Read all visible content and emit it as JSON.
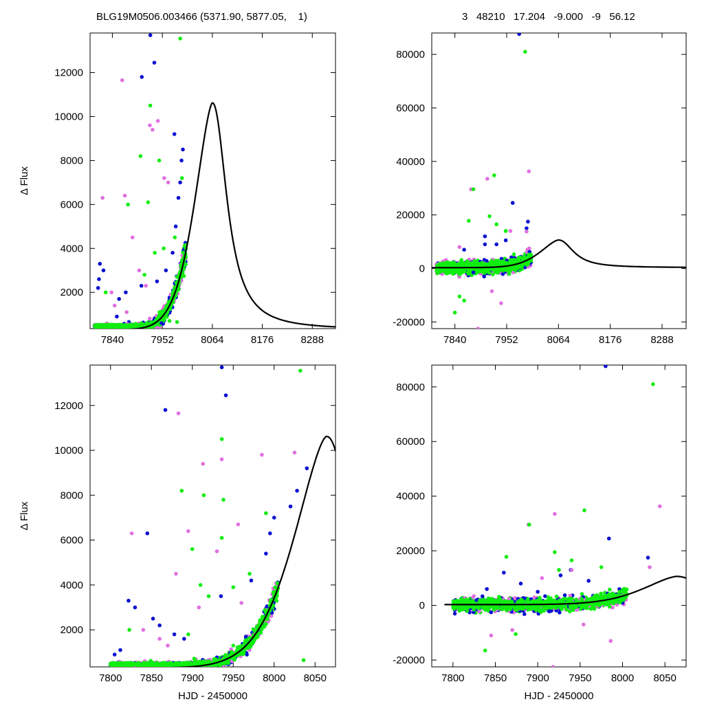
{
  "header": {
    "left": "BLG19M0506.003466 (5371.90, 5877.05,    1)",
    "right": "3   48210   17.204   -9.000   -9   56.12"
  },
  "colors": {
    "blue": "#0a10d0",
    "green": "#10ee10",
    "magenta": "#e070e0",
    "model": "#000000"
  },
  "model": {
    "t0": 8064,
    "peak_flux": 10620,
    "base_flux": 300,
    "fwhm_days": 55,
    "shape": "smooth microlensing-like peak"
  },
  "chart_data": [
    {
      "type": "scatter",
      "panel": "top-left",
      "title": "",
      "xlabel": "",
      "ylabel": "Δ Flux",
      "xlim": [
        7790,
        8340
      ],
      "ylim": [
        350,
        13800
      ],
      "xticks": [
        "7840",
        "7952",
        "8064",
        "8176",
        "8288"
      ],
      "yticks": [
        "2000",
        "4000",
        "6000",
        "8000",
        "10000",
        "12000"
      ],
      "series": [
        {
          "color": "blue",
          "x": [
            7925,
            7934,
            7906,
            7979,
            7998,
            7995,
            7812,
            7820,
            7810,
            7808,
            7855,
            7870,
            7905,
            7940,
            7960,
            7975,
            7982,
            7988,
            7992,
            7850,
            7950
          ],
          "y": [
            13700,
            12450,
            11800,
            9200,
            8500,
            8000,
            3300,
            3000,
            2600,
            2200,
            1700,
            2000,
            2300,
            2500,
            3000,
            3800,
            5000,
            6300,
            7000,
            900,
            600
          ]
        },
        {
          "color": "magenta",
          "x": [
            7862,
            7818,
            7924,
            7942,
            7930,
            7956,
            7965,
            7868,
            7885,
            7900,
            7915,
            7838,
            7845,
            7872
          ],
          "y": [
            11650,
            6300,
            9600,
            9800,
            9400,
            7200,
            7000,
            6400,
            4500,
            3000,
            2300,
            2000,
            1400,
            1100
          ]
        },
        {
          "color": "green",
          "x": [
            7992,
            7925,
            7903,
            7945,
            7920,
            7875,
            7980,
            7955,
            7935,
            7825,
            7912,
            7968,
            7985,
            7996
          ],
          "y": [
            13550,
            10500,
            8200,
            8000,
            6100,
            6000,
            4500,
            4000,
            3800,
            2000,
            2800,
            700,
            650,
            7200
          ]
        }
      ]
    },
    {
      "type": "scatter",
      "panel": "top-right",
      "title": "",
      "xlabel": "",
      "ylabel": "",
      "xlim": [
        7790,
        8340
      ],
      "ylim": [
        -22500,
        88000
      ],
      "xticks": [
        "7840",
        "7952",
        "8064",
        "8176",
        "8288"
      ],
      "yticks": [
        "-20000",
        "0",
        "20000",
        "40000",
        "60000",
        "80000"
      ],
      "series": [
        {
          "color": "blue",
          "x": [
            7979,
            7965,
            7998,
            7905,
            7905,
            7930,
            7950,
            7995,
            7860,
            7880
          ],
          "y": [
            87600,
            24500,
            17500,
            12000,
            9000,
            9000,
            10500,
            15000,
            7000,
            -1500
          ]
        },
        {
          "color": "magenta",
          "x": [
            8000,
            7910,
            7875,
            7960,
            7995,
            7940,
            7890,
            7920,
            7850
          ],
          "y": [
            36300,
            33500,
            29600,
            14000,
            13800,
            -13000,
            -22500,
            -8500,
            8000
          ]
        },
        {
          "color": "green",
          "x": [
            7992,
            7925,
            7880,
            7870,
            7930,
            7915,
            7850,
            7840,
            7860,
            7950
          ],
          "y": [
            81000,
            34800,
            29600,
            17800,
            16500,
            19500,
            -10500,
            -16500,
            -12000,
            14000
          ]
        }
      ]
    },
    {
      "type": "scatter",
      "panel": "bottom-left",
      "title": "",
      "xlabel": "HJD - 2450000",
      "ylabel": "Δ Flux",
      "xlim": [
        7775,
        8075
      ],
      "ylim": [
        350,
        13800
      ],
      "xticks": [
        "7800",
        "7850",
        "7900",
        "7950",
        "8000",
        "8050"
      ],
      "yticks": [
        "2000",
        "4000",
        "6000",
        "8000",
        "10000",
        "12000"
      ],
      "series": [
        {
          "color": "blue",
          "x": [
            7936,
            7941,
            7867,
            7845,
            7822,
            7830,
            7852,
            7860,
            7878,
            7890,
            7935,
            7972,
            7990,
            7995,
            8000,
            8020,
            8028,
            8040,
            7812,
            7805
          ],
          "y": [
            13700,
            12450,
            11800,
            6300,
            3300,
            3000,
            2500,
            2200,
            1800,
            1600,
            3500,
            4200,
            5400,
            6300,
            7000,
            7500,
            8200,
            9200,
            1100,
            900
          ]
        },
        {
          "color": "magenta",
          "x": [
            7883,
            7826,
            7913,
            7936,
            7985,
            8025,
            7895,
            7930,
            7956,
            7880,
            7908,
            7960,
            7840,
            7860,
            7870
          ],
          "y": [
            11650,
            6300,
            9400,
            9600,
            9800,
            9900,
            6400,
            5500,
            6700,
            4500,
            3000,
            3200,
            2000,
            1600,
            1300
          ]
        },
        {
          "color": "green",
          "x": [
            8032,
            7936,
            7887,
            7914,
            7936,
            7900,
            7990,
            7970,
            7950,
            7920,
            7823,
            7950,
            8036,
            7938,
            7910,
            7895
          ],
          "y": [
            13550,
            10500,
            8200,
            8000,
            6100,
            5600,
            7200,
            4500,
            3900,
            3500,
            2000,
            1300,
            650,
            7800,
            4000,
            1800
          ]
        }
      ]
    },
    {
      "type": "scatter",
      "panel": "bottom-right",
      "title": "",
      "xlabel": "HJD - 2450000",
      "ylabel": "",
      "xlim": [
        7775,
        8075
      ],
      "ylim": [
        -22500,
        88000
      ],
      "xticks": [
        "7800",
        "7850",
        "7900",
        "7950",
        "8000",
        "8050"
      ],
      "yticks": [
        "-20000",
        "0",
        "20000",
        "40000",
        "60000",
        "80000"
      ],
      "series": [
        {
          "color": "blue",
          "x": [
            7980,
            7984,
            8030,
            7860,
            7927,
            7939,
            7960,
            7840,
            7880,
            7900
          ],
          "y": [
            87600,
            24500,
            17500,
            12000,
            11000,
            13000,
            9000,
            6000,
            8000,
            5000
          ]
        },
        {
          "color": "magenta",
          "x": [
            8044,
            7920,
            7889,
            7940,
            7986,
            7954,
            7918,
            7870,
            7845,
            8032,
            7905
          ],
          "y": [
            36300,
            33500,
            29600,
            13000,
            -13000,
            -7000,
            -22500,
            -9000,
            -11000,
            14000,
            10000
          ]
        },
        {
          "color": "green",
          "x": [
            8036,
            7955,
            7890,
            7863,
            7920,
            7940,
            7838,
            7874,
            7925,
            7975
          ],
          "y": [
            81000,
            34800,
            29600,
            17800,
            19500,
            16500,
            -16500,
            -10500,
            13000,
            14000
          ]
        }
      ]
    }
  ]
}
